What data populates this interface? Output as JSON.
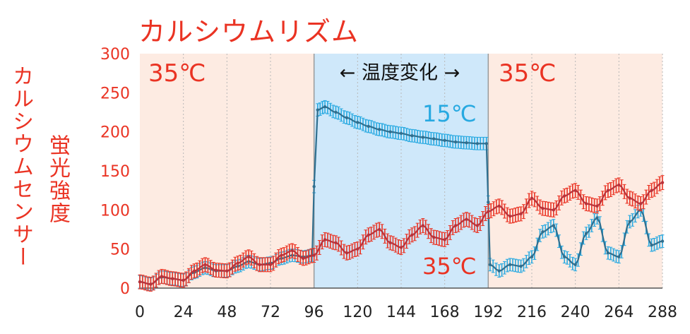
{
  "title": "カルシウムリズム",
  "ylabel_line1": "カルシウムセンサー",
  "ylabel_line2": "蛍光強度",
  "annotations": {
    "left_temp": "35℃",
    "right_temp": "35℃",
    "middle": "← 温度変化 →",
    "cold_series_label": "15℃",
    "warm_series_label": "35℃"
  },
  "colors": {
    "red": "#ea3323",
    "blue": "#27a9e1",
    "dark_red": "#b9323a",
    "dark_blue": "#2f6f8f",
    "band_warm": "#fdebe2",
    "band_cold": "#cfe8fa"
  },
  "chart_data": {
    "type": "line",
    "xlim": [
      0,
      288
    ],
    "ylim": [
      0,
      300
    ],
    "x_ticks": [
      0,
      24,
      48,
      72,
      96,
      120,
      144,
      168,
      192,
      216,
      240,
      264,
      288
    ],
    "y_ticks": [
      0,
      50,
      100,
      150,
      200,
      250,
      300
    ],
    "regions": [
      {
        "x0": 0,
        "x1": 96,
        "condition": "35℃"
      },
      {
        "x0": 96,
        "x1": 192,
        "condition": "15℃"
      },
      {
        "x0": 192,
        "x1": 288,
        "condition": "35℃"
      }
    ],
    "series": [
      {
        "name": "35℃",
        "color": "#ea3323",
        "x": [
          0,
          6,
          12,
          18,
          24,
          30,
          36,
          42,
          48,
          54,
          60,
          66,
          72,
          78,
          84,
          90,
          96,
          102,
          108,
          114,
          120,
          126,
          132,
          138,
          144,
          150,
          156,
          162,
          168,
          174,
          180,
          186,
          192,
          198,
          204,
          210,
          216,
          222,
          228,
          234,
          240,
          246,
          252,
          258,
          264,
          270,
          276,
          282,
          288
        ],
        "y": [
          8,
          5,
          15,
          12,
          10,
          22,
          30,
          23,
          22,
          32,
          40,
          30,
          30,
          42,
          48,
          38,
          42,
          62,
          58,
          45,
          50,
          68,
          75,
          58,
          52,
          68,
          80,
          65,
          62,
          80,
          88,
          80,
          98,
          105,
          92,
          95,
          115,
          102,
          100,
          118,
          125,
          108,
          105,
          125,
          132,
          115,
          108,
          125,
          135
        ],
        "error": 9
      },
      {
        "name": "15℃",
        "color": "#27a9e1",
        "x": [
          0,
          6,
          12,
          18,
          24,
          30,
          36,
          42,
          48,
          54,
          60,
          66,
          72,
          78,
          84,
          90,
          95,
          96,
          98,
          102,
          108,
          114,
          120,
          126,
          132,
          138,
          144,
          150,
          156,
          162,
          168,
          174,
          180,
          186,
          191,
          192,
          193,
          198,
          204,
          210,
          216,
          222,
          228,
          234,
          240,
          246,
          252,
          258,
          264,
          270,
          276,
          282,
          288
        ],
        "y": [
          8,
          5,
          14,
          12,
          10,
          20,
          26,
          22,
          22,
          28,
          34,
          30,
          32,
          38,
          42,
          40,
          42,
          130,
          228,
          232,
          225,
          218,
          212,
          207,
          203,
          200,
          198,
          195,
          193,
          191,
          189,
          187,
          186,
          185,
          185,
          110,
          30,
          22,
          30,
          28,
          40,
          72,
          80,
          40,
          30,
          70,
          90,
          45,
          40,
          85,
          100,
          55,
          60
        ],
        "error": 8
      }
    ]
  }
}
